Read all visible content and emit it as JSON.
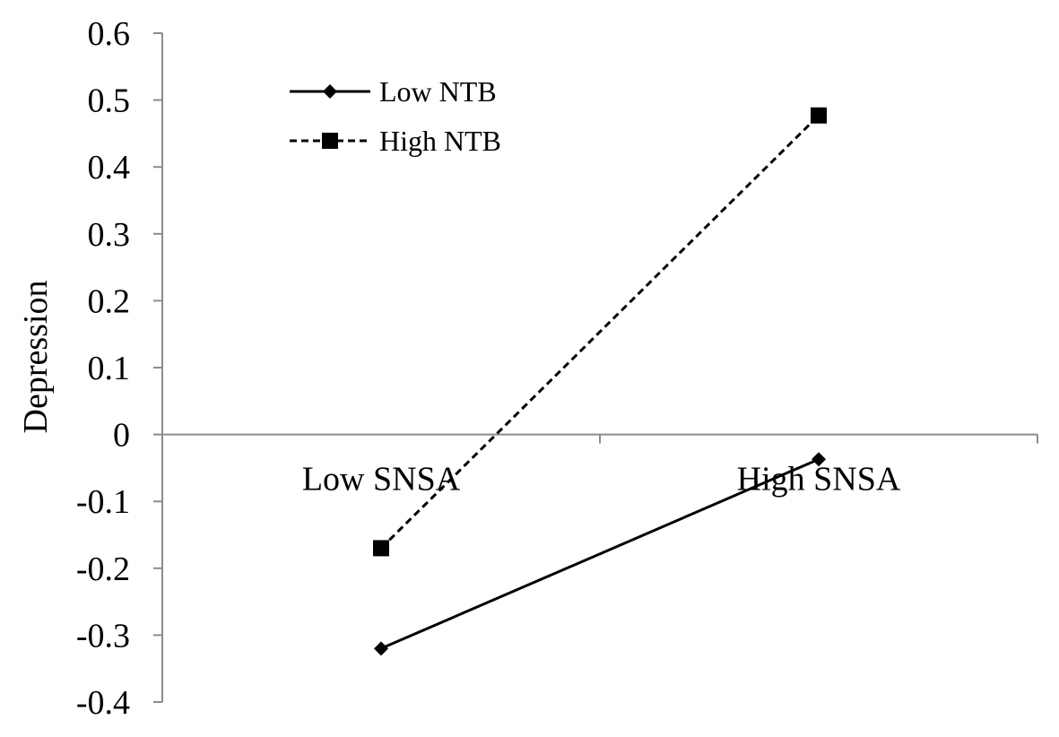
{
  "chart_data": {
    "type": "line",
    "title": "",
    "xlabel": "",
    "ylabel": "Depression",
    "categories": [
      "Low SNSA",
      "High SNSA"
    ],
    "ylim": [
      -0.4,
      0.6
    ],
    "yticks": [
      -0.4,
      -0.3,
      -0.2,
      -0.1,
      0,
      0.1,
      0.2,
      0.3,
      0.4,
      0.5,
      0.6
    ],
    "yticks_labels": [
      "-0.4",
      "-0.3",
      "-0.2",
      "-0.1",
      "0",
      "0.1",
      "0.2",
      "0.3",
      "0.4",
      "0.5",
      "0.6"
    ],
    "grid": false,
    "legend": "top-left",
    "series": [
      {
        "name": "Low NTB",
        "values": [
          -0.32,
          -0.037
        ],
        "marker": "diamond",
        "line_style": "solid",
        "color": "#000000"
      },
      {
        "name": "High NTB",
        "values": [
          -0.17,
          0.477
        ],
        "marker": "square",
        "line_style": "dashed",
        "color": "#000000"
      }
    ]
  }
}
